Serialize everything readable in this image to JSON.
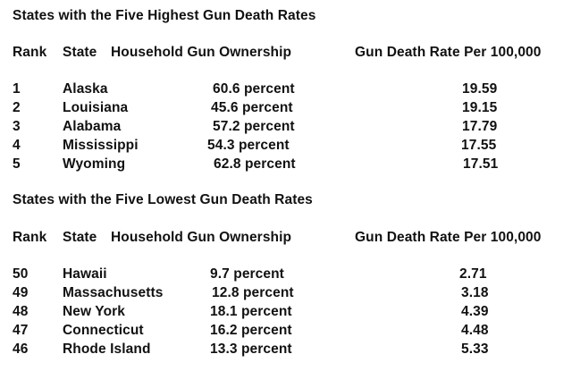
{
  "highest": {
    "title": "States with the Five Highest Gun Death Rates",
    "headers": {
      "rank": "Rank",
      "state": "State",
      "ownership": "Household Gun Ownership",
      "rate": "Gun Death Rate Per 100,000"
    },
    "rows": [
      {
        "rank": "1",
        "state": "Alaska",
        "ownership": "60.6 percent",
        "rate": "19.59"
      },
      {
        "rank": "2",
        "state": "Louisiana",
        "ownership": "45.6 percent",
        "rate": "19.15"
      },
      {
        "rank": "3",
        "state": "Alabama",
        "ownership": "57.2 percent",
        "rate": "17.79"
      },
      {
        "rank": "4",
        "state": "Mississippi",
        "ownership": "54.3 percent",
        "rate": "17.55"
      },
      {
        "rank": "5",
        "state": "Wyoming",
        "ownership": "62.8 percent",
        "rate": "17.51"
      }
    ]
  },
  "lowest": {
    "title": "States with the Five Lowest Gun Death Rates",
    "headers": {
      "rank": "Rank",
      "state": "State",
      "ownership": "Household Gun Ownership",
      "rate": "Gun Death Rate Per 100,000"
    },
    "rows": [
      {
        "rank": "50",
        "state": "Hawaii",
        "ownership": "9.7 percent",
        "rate": "2.71"
      },
      {
        "rank": "49",
        "state": "Massachusetts",
        "ownership": "12.8 percent",
        "rate": "3.18"
      },
      {
        "rank": "48",
        "state": "New York",
        "ownership": "18.1 percent",
        "rate": "4.39"
      },
      {
        "rank": "47",
        "state": "Connecticut",
        "ownership": "16.2 percent",
        "rate": "4.48"
      },
      {
        "rank": "46",
        "state": "Rhode Island",
        "ownership": "13.3 percent",
        "rate": "5.33"
      }
    ]
  }
}
